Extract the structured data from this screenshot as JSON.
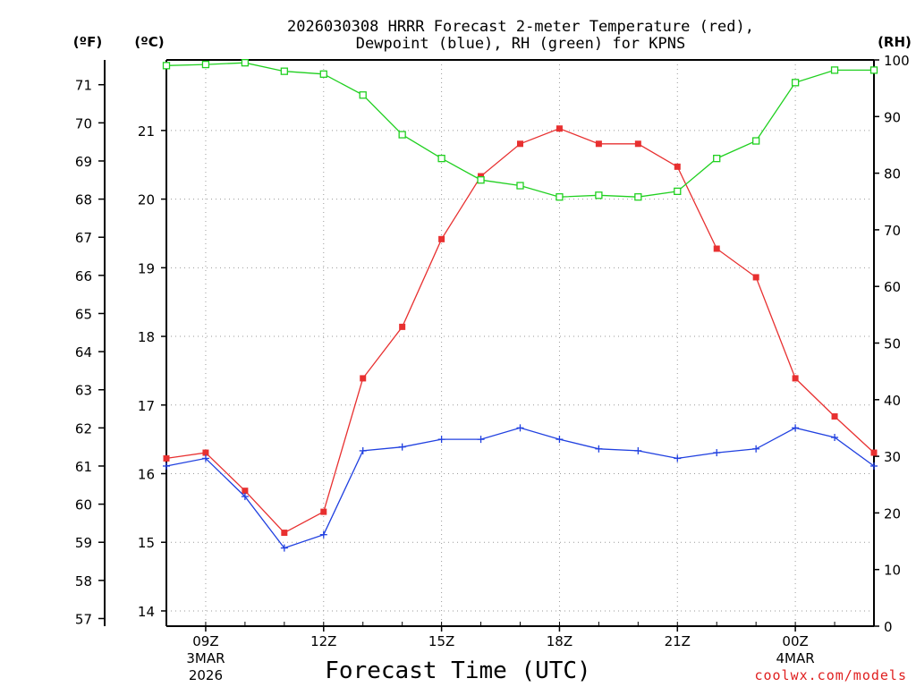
{
  "chart_data": {
    "type": "line",
    "title_line1": "2026030308 HRRR Forecast 2-meter Temperature (red),",
    "title_line2": "Dewpoint (blue), RH (green) for KPNS",
    "xlabel": "Forecast Time (UTC)",
    "credit": "coolwx.com/models",
    "units": {
      "f": "(ºF)",
      "c": "(ºC)",
      "rh": "(RH)"
    },
    "x_hours": [
      0,
      1,
      2,
      3,
      4,
      5,
      6,
      7,
      8,
      9,
      10,
      11,
      12,
      13,
      14,
      15,
      16,
      17,
      18
    ],
    "x_range": [
      0,
      18
    ],
    "f_ticks": [
      57,
      58,
      59,
      60,
      61,
      62,
      63,
      64,
      65,
      66,
      67,
      68,
      69,
      70,
      71
    ],
    "f_range": [
      56.8,
      71.65
    ],
    "c_ticks": [
      14,
      15,
      16,
      17,
      18,
      19,
      20,
      21
    ],
    "rh_ticks": [
      0,
      10,
      20,
      30,
      40,
      50,
      60,
      70,
      80,
      90,
      100
    ],
    "rh_range": [
      0,
      100
    ],
    "x_ticks": [
      {
        "hour": 1,
        "label": "09Z",
        "sub1": "3MAR",
        "sub2": "2026"
      },
      {
        "hour": 4,
        "label": "12Z",
        "sub1": "",
        "sub2": ""
      },
      {
        "hour": 7,
        "label": "15Z",
        "sub1": "",
        "sub2": ""
      },
      {
        "hour": 10,
        "label": "18Z",
        "sub1": "",
        "sub2": ""
      },
      {
        "hour": 13,
        "label": "21Z",
        "sub1": "",
        "sub2": ""
      },
      {
        "hour": 16,
        "label": "00Z",
        "sub1": "4MAR",
        "sub2": ""
      }
    ],
    "series": [
      {
        "name": "Temperature",
        "color": "#e83030",
        "marker": "filled-square",
        "values": [
          61.2,
          61.35,
          60.35,
          59.25,
          59.8,
          63.3,
          64.65,
          66.95,
          68.6,
          69.45,
          69.85,
          69.45,
          69.45,
          68.85,
          66.7,
          65.95,
          63.3,
          62.3,
          61.35
        ]
      },
      {
        "name": "Dewpoint",
        "color": "#2040e0",
        "marker": "plus",
        "values": [
          61.0,
          61.2,
          60.2,
          58.85,
          59.2,
          61.4,
          61.5,
          61.7,
          61.7,
          62.0,
          61.7,
          61.45,
          61.4,
          61.2,
          61.35,
          61.45,
          62.0,
          61.75,
          61.0
        ]
      },
      {
        "name": "RH",
        "color": "#20d020",
        "marker": "open-square",
        "axis": "rh",
        "values": [
          99.0,
          99.2,
          99.5,
          98.0,
          97.5,
          93.8,
          86.8,
          82.6,
          78.8,
          77.8,
          75.8,
          76.1,
          75.8,
          76.8,
          82.6,
          85.7,
          96.0,
          98.2,
          98.2
        ]
      }
    ]
  }
}
